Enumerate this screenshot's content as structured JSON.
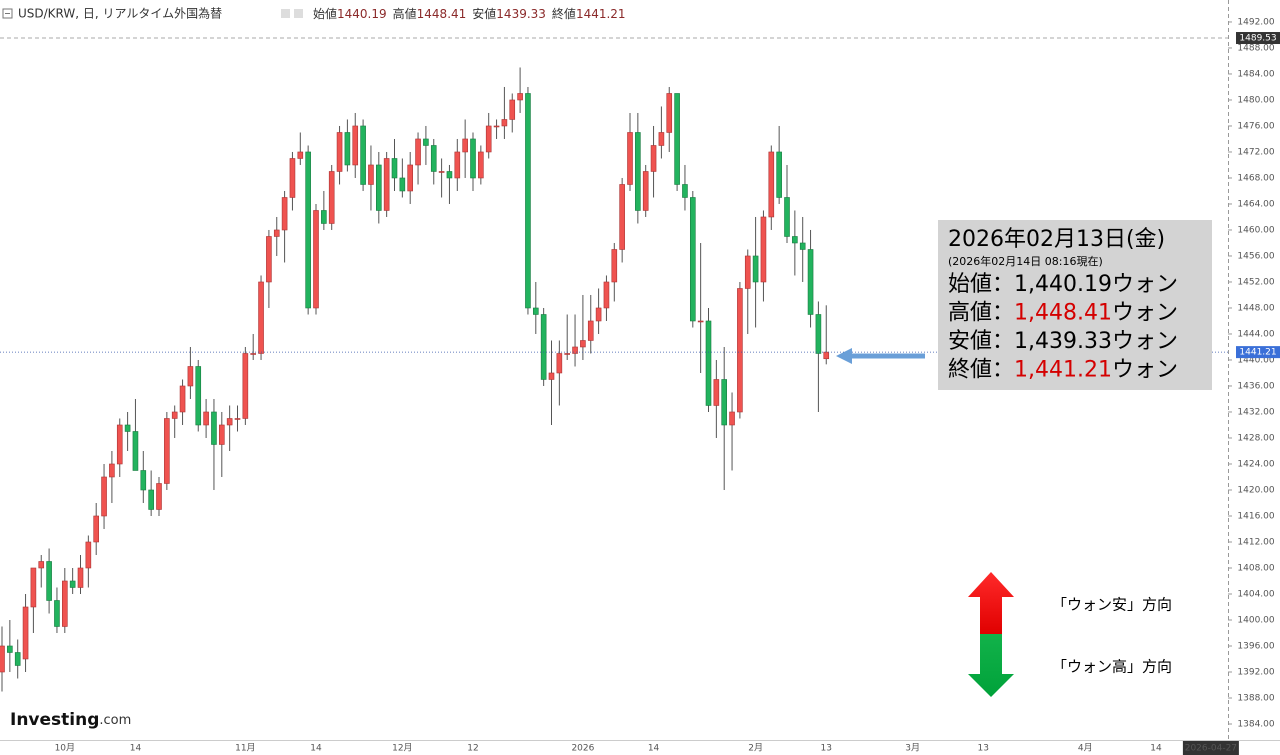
{
  "header": {
    "symbol": "USD/KRW, 日, リアルタイム外国為替",
    "quotes": [
      {
        "label": "始値",
        "value": "1440.19"
      },
      {
        "label": "高値",
        "value": "1448.41"
      },
      {
        "label": "安値",
        "value": "1439.33"
      },
      {
        "label": "終値",
        "value": "1441.21"
      }
    ]
  },
  "chart_data": {
    "type": "candlestick",
    "up_color": "#ef5350",
    "down_color": "#22b35e",
    "ylim": [
      1379.23,
      1495.38
    ],
    "yticks": [
      {
        "value": 1384,
        "label": "1384.00"
      },
      {
        "value": 1388,
        "label": "1388.00"
      },
      {
        "value": 1392,
        "label": "1392.00"
      },
      {
        "value": 1396,
        "label": "1396.00"
      },
      {
        "value": 1400,
        "label": "1400.00"
      },
      {
        "value": 1404,
        "label": "1404.00"
      },
      {
        "value": 1408,
        "label": "1408.00"
      },
      {
        "value": 1412,
        "label": "1412.00"
      },
      {
        "value": 1416,
        "label": "1416.00"
      },
      {
        "value": 1420,
        "label": "1420.00"
      },
      {
        "value": 1424,
        "label": "1424.00"
      },
      {
        "value": 1428,
        "label": "1428.00"
      },
      {
        "value": 1432,
        "label": "1432.00"
      },
      {
        "value": 1436,
        "label": "1436.00"
      },
      {
        "value": 1440,
        "label": "1440.00"
      },
      {
        "value": 1444,
        "label": "1444.00"
      },
      {
        "value": 1448,
        "label": "1448.00"
      },
      {
        "value": 1452,
        "label": "1452.00"
      },
      {
        "value": 1456,
        "label": "1456.00"
      },
      {
        "value": 1460,
        "label": "1460.00"
      },
      {
        "value": 1464,
        "label": "1464.00"
      },
      {
        "value": 1468,
        "label": "1468.00"
      },
      {
        "value": 1472,
        "label": "1472.00"
      },
      {
        "value": 1476,
        "label": "1476.00"
      },
      {
        "value": 1480,
        "label": "1480.00"
      },
      {
        "value": 1484,
        "label": "1484.00"
      },
      {
        "value": 1488,
        "label": "1488.00"
      },
      {
        "value": 1492,
        "label": "1492.00"
      }
    ],
    "last_price": 1441.21,
    "reference_line": 1489.53,
    "categories": [
      null,
      null,
      null,
      null,
      null,
      null,
      null,
      null,
      "10月",
      null,
      null,
      null,
      null,
      null,
      null,
      null,
      null,
      "14",
      null,
      null,
      null,
      null,
      null,
      null,
      null,
      null,
      null,
      null,
      null,
      null,
      null,
      "11月",
      null,
      null,
      null,
      null,
      null,
      null,
      null,
      null,
      "14",
      null,
      null,
      null,
      null,
      null,
      null,
      null,
      null,
      null,
      null,
      "12月",
      null,
      null,
      null,
      null,
      null,
      null,
      null,
      null,
      "12",
      null,
      null,
      null,
      null,
      null,
      null,
      null,
      null,
      null,
      null,
      null,
      null,
      null,
      "2026",
      null,
      null,
      null,
      null,
      null,
      null,
      null,
      null,
      "14",
      null,
      null,
      null,
      null,
      null,
      null,
      null,
      null,
      null,
      null,
      null,
      null,
      "2月",
      null,
      null,
      null,
      null,
      null,
      null,
      null,
      null,
      "13",
      null,
      null,
      null,
      null,
      null,
      null,
      null,
      null,
      null,
      null,
      "3月",
      null,
      null,
      null,
      null,
      null,
      null,
      null,
      null,
      "13",
      null,
      null,
      null,
      null,
      null,
      null,
      null,
      null,
      null,
      null,
      null,
      null,
      "4月",
      null,
      null,
      null,
      null,
      null,
      null,
      null,
      null,
      "14",
      null,
      null,
      null,
      null,
      null,
      null,
      "2026-04-27"
    ],
    "open": [
      1392,
      1396,
      1395,
      1394,
      1402,
      1408,
      1409,
      1403,
      1399,
      1406,
      1405,
      1408,
      1412,
      1416,
      1422,
      1424,
      1430,
      1429,
      1423,
      1420,
      1417,
      1421,
      1431,
      1432,
      1436,
      1439,
      1430,
      1432,
      1427,
      1430,
      1431,
      1431,
      1441,
      1441,
      1452,
      1459,
      1460,
      1465,
      1471,
      1472,
      1448,
      1463,
      1461,
      1469,
      1475,
      1470,
      1476,
      1467,
      1470,
      1463,
      1471,
      1468,
      1466,
      1470,
      1474,
      1473,
      1469,
      1469,
      1468,
      1472,
      1474,
      1468,
      1472,
      1476,
      1476,
      1477,
      1480,
      1481,
      1448,
      1447,
      1437,
      1438,
      1441,
      1441,
      1442,
      1443,
      1446,
      1448,
      1452,
      1457,
      1467,
      1475,
      1463,
      1469,
      1473,
      1475,
      1481,
      1467,
      1465,
      1446,
      1446,
      1433,
      1437,
      1430,
      1432,
      1451,
      1456,
      1452,
      1462,
      1472,
      1465,
      1459,
      1458,
      1457,
      1447,
      1440.19,
      null,
      null,
      null,
      null,
      null,
      null,
      null,
      null,
      null,
      null,
      null,
      null,
      null,
      null,
      null,
      null,
      null,
      null,
      null,
      null,
      null,
      null,
      null,
      null,
      null,
      null,
      null,
      null,
      null,
      null,
      null,
      null,
      null,
      null,
      null,
      null,
      null,
      null,
      null,
      null,
      null,
      null,
      null,
      null,
      null,
      null,
      null,
      null,
      null
    ],
    "high": [
      1399,
      1400,
      1397,
      1404,
      1408,
      1410,
      1411,
      1405,
      1408,
      1408,
      1410,
      1413,
      1418,
      1424,
      1426,
      1431,
      1432,
      1434,
      1426,
      1423,
      1422,
      1432,
      1433,
      1437,
      1442,
      1440,
      1434,
      1434,
      1432,
      1433,
      1433,
      1442,
      1444,
      1453,
      1460,
      1462,
      1466,
      1472,
      1475,
      1473,
      1464,
      1466,
      1470,
      1476,
      1477,
      1478,
      1477,
      1473,
      1472,
      1472,
      1474,
      1471,
      1472,
      1475,
      1476,
      1474,
      1471,
      1470,
      1474,
      1477,
      1475,
      1473,
      1478,
      1477,
      1482,
      1481,
      1485,
      1482,
      1452,
      1448,
      1443,
      1443,
      1447,
      1447,
      1450,
      1450,
      1451,
      1453,
      1458,
      1468,
      1478,
      1478,
      1470,
      1476,
      1479,
      1482,
      1481,
      1470,
      1466,
      1458,
      1448,
      1440,
      1442,
      1435,
      1452,
      1457,
      1462,
      1463,
      1473,
      1476,
      1470,
      1463,
      1462,
      1460,
      1449,
      1448.41,
      null,
      null,
      null,
      null,
      null,
      null,
      null,
      null,
      null,
      null,
      null,
      null,
      null,
      null,
      null,
      null,
      null,
      null,
      null,
      null,
      null,
      null,
      null,
      null,
      null,
      null,
      null,
      null,
      null,
      null,
      null,
      null,
      null,
      null,
      null,
      null,
      null,
      null,
      null,
      null,
      null,
      null,
      null,
      null,
      null,
      null,
      null,
      null,
      null
    ],
    "low": [
      1389,
      1392,
      1391,
      1392,
      1398,
      1405,
      1401,
      1398,
      1398,
      1404,
      1404,
      1405,
      1410,
      1414,
      1418,
      1422,
      1426,
      1424,
      1418,
      1416,
      1416,
      1420,
      1428,
      1430,
      1434,
      1429,
      1428,
      1420,
      1422,
      1426,
      1429,
      1430,
      1440,
      1440,
      1448,
      1456,
      1455,
      1463,
      1470,
      1447,
      1447,
      1460,
      1460,
      1467,
      1469,
      1468,
      1466,
      1463,
      1461,
      1462,
      1466,
      1465,
      1464,
      1467,
      1470,
      1467,
      1465,
      1464,
      1466,
      1468,
      1466,
      1467,
      1471,
      1474,
      1474,
      1475,
      1478,
      1447,
      1444,
      1436,
      1430,
      1433,
      1440,
      1439,
      1440,
      1441,
      1444,
      1446,
      1449,
      1455,
      1466,
      1461,
      1462,
      1465,
      1471,
      1472,
      1466,
      1463,
      1445,
      1438,
      1432,
      1428,
      1420,
      1423,
      1431,
      1444,
      1445,
      1449,
      1460,
      1464,
      1458,
      1453,
      1452,
      1445,
      1432,
      1439.33,
      null,
      null,
      null,
      null,
      null,
      null,
      null,
      null,
      null,
      null,
      null,
      null,
      null,
      null,
      null,
      null,
      null,
      null,
      null,
      null,
      null,
      null,
      null,
      null,
      null,
      null,
      null,
      null,
      null,
      null,
      null,
      null,
      null,
      null,
      null,
      null,
      null,
      null,
      null,
      null,
      null,
      null,
      null,
      null,
      null,
      null,
      null,
      null,
      null
    ],
    "close": [
      1396,
      1395,
      1393,
      1402,
      1408,
      1409,
      1403,
      1399,
      1406,
      1405,
      1408,
      1412,
      1416,
      1422,
      1424,
      1430,
      1429,
      1423,
      1420,
      1417,
      1421,
      1431,
      1432,
      1436,
      1439,
      1430,
      1432,
      1427,
      1430,
      1431,
      1431,
      1441,
      1441,
      1452,
      1459,
      1460,
      1465,
      1471,
      1472,
      1448,
      1463,
      1461,
      1469,
      1475,
      1470,
      1476,
      1467,
      1470,
      1463,
      1471,
      1468,
      1466,
      1470,
      1474,
      1473,
      1469,
      1469,
      1468,
      1472,
      1474,
      1468,
      1472,
      1476,
      1476,
      1477,
      1480,
      1481,
      1448,
      1447,
      1437,
      1438,
      1441,
      1441,
      1442,
      1443,
      1446,
      1448,
      1452,
      1457,
      1467,
      1475,
      1463,
      1469,
      1473,
      1475,
      1481,
      1467,
      1465,
      1446,
      1446,
      1433,
      1437,
      1430,
      1432,
      1451,
      1456,
      1452,
      1462,
      1472,
      1465,
      1459,
      1458,
      1457,
      1447,
      1441,
      1441.21,
      null,
      null,
      null,
      null,
      null,
      null,
      null,
      null,
      null,
      null,
      null,
      null,
      null,
      null,
      null,
      null,
      null,
      null,
      null,
      null,
      null,
      null,
      null,
      null,
      null,
      null,
      null,
      null,
      null,
      null,
      null,
      null,
      null,
      null,
      null,
      null,
      null,
      null,
      null,
      null,
      null,
      null,
      null,
      null,
      null,
      null,
      null,
      null,
      null
    ]
  },
  "info_box": {
    "date": "2026年02月13日(金)",
    "as_of": "(2026年02月14日 08:16現在)",
    "rows": [
      {
        "label": "始値：",
        "value": "1,440.19",
        "unit": "ウォン",
        "highlight": false
      },
      {
        "label": "高値：",
        "value": "1,448.41",
        "unit": "ウォン",
        "highlight": true
      },
      {
        "label": "安値：",
        "value": "1,439.33",
        "unit": "ウォン",
        "highlight": false
      },
      {
        "label": "終値：",
        "value": "1,441.21",
        "unit": "ウォン",
        "highlight": true
      }
    ]
  },
  "direction_labels": {
    "up": "「ウォン安」方向",
    "down": "「ウォン高」方向"
  },
  "logo": {
    "brand": "Investing",
    "suffix": ".com"
  }
}
